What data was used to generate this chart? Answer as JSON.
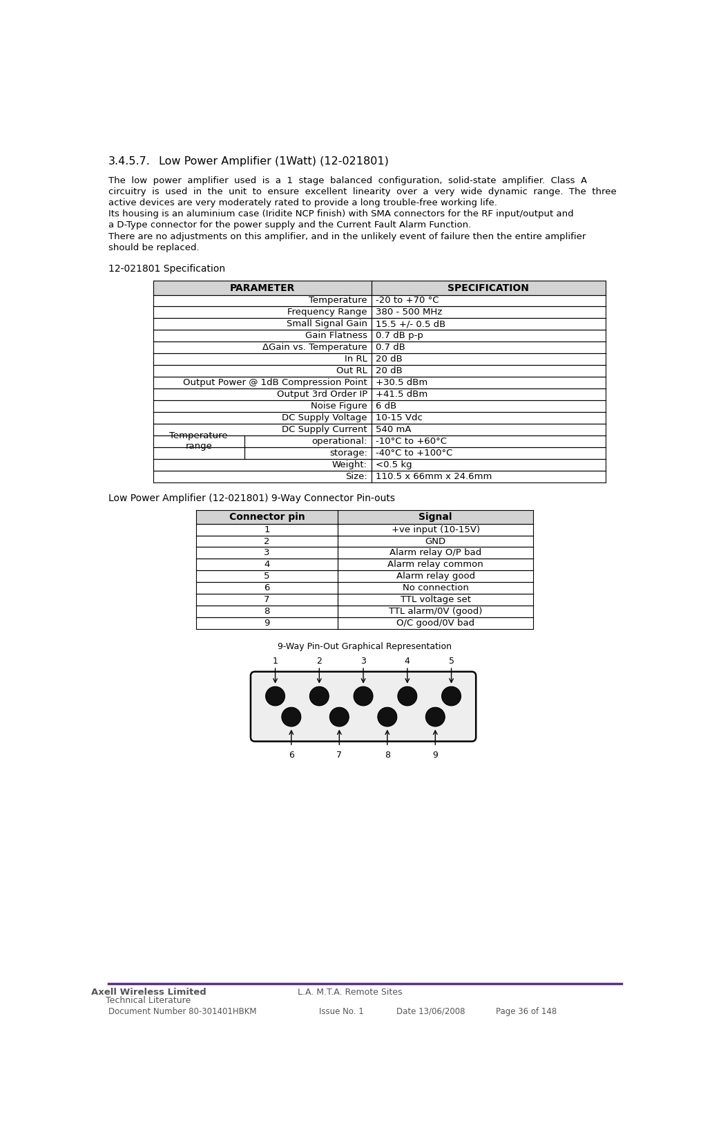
{
  "title_num": "3.4.5.7.",
  "title_text": "Low Power Amplifier (1Watt) (12-021801)",
  "body_text": [
    "The  low  power  amplifier  used  is  a  1  stage  balanced  configuration,  solid-state  amplifier.  Class  A",
    "circuitry  is  used  in  the  unit  to  ensure  excellent  linearity  over  a  very  wide  dynamic  range.  The  three",
    "active devices are very moderately rated to provide a long trouble-free working life.",
    "Its housing is an aluminium case (Iridite NCP finish) with SMA connectors for the RF input/output and",
    "a D-Type connector for the power supply and the Current Fault Alarm Function.",
    "There are no adjustments on this amplifier, and in the unlikely event of failure then the entire amplifier",
    "should be replaced."
  ],
  "spec_title": "12-021801 Specification",
  "spec_header": [
    "PARAMETER",
    "SPECIFICATION"
  ],
  "spec_simple_rows": [
    [
      "Temperature",
      "-20 to +70 °C"
    ],
    [
      "Frequency Range",
      "380 - 500 MHz"
    ],
    [
      "Small Signal Gain",
      "15.5 +/- 0.5 dB"
    ],
    [
      "Gain Flatness",
      "0.7 dB p-p"
    ],
    [
      "ΔGain vs. Temperature",
      "0.7 dB"
    ],
    [
      "In RL",
      "20 dB"
    ],
    [
      "Out RL",
      "20 dB"
    ],
    [
      "Output Power @ 1dB Compression Point",
      "+30.5 dBm"
    ],
    [
      "Output 3rd Order IP",
      "+41.5 dBm"
    ],
    [
      "Noise Figure",
      "6 dB"
    ],
    [
      "DC Supply Voltage",
      "10-15 Vdc"
    ],
    [
      "DC Supply Current",
      "540 mA"
    ]
  ],
  "temp_rows": [
    [
      "Temperature\nrange",
      "operational:",
      "-10°C to +60°C"
    ],
    [
      "",
      "storage:",
      "-40°C to +100°C"
    ]
  ],
  "spec_last_rows": [
    [
      "Weight:",
      "<0.5 kg"
    ],
    [
      "Size:",
      "110.5 x 66mm x 24.6mm"
    ]
  ],
  "connector_title": "Low Power Amplifier (12-021801) 9-Way Connector Pin-outs",
  "connector_header": [
    "Connector pin",
    "Signal"
  ],
  "connector_rows": [
    [
      "1",
      "+ve input (10-15V)"
    ],
    [
      "2",
      "GND"
    ],
    [
      "3",
      "Alarm relay O/P bad"
    ],
    [
      "4",
      "Alarm relay common"
    ],
    [
      "5",
      "Alarm relay good"
    ],
    [
      "6",
      "No connection"
    ],
    [
      "7",
      "TTL voltage set"
    ],
    [
      "8",
      "TTL alarm/0V (good)"
    ],
    [
      "9",
      "O/C good/0V bad"
    ]
  ],
  "diagram_title": "9-Way Pin-Out Graphical Representation",
  "footer_line_color": "#5b2d8e",
  "footer_company": "Axell Wireless Limited",
  "footer_subtitle": "Technical Literature",
  "footer_doc": "Document Number 80-301401HBKM",
  "footer_center": "L.A. M.T.A. Remote Sites",
  "footer_issue": "Issue No. 1",
  "footer_date": "Date 13/06/2008",
  "footer_page": "Page 36 of 148",
  "bg_color": "#ffffff",
  "header_bg": "#d3d3d3",
  "table_border": "#000000",
  "text_color": "#000000",
  "footer_text_color": "#555555"
}
